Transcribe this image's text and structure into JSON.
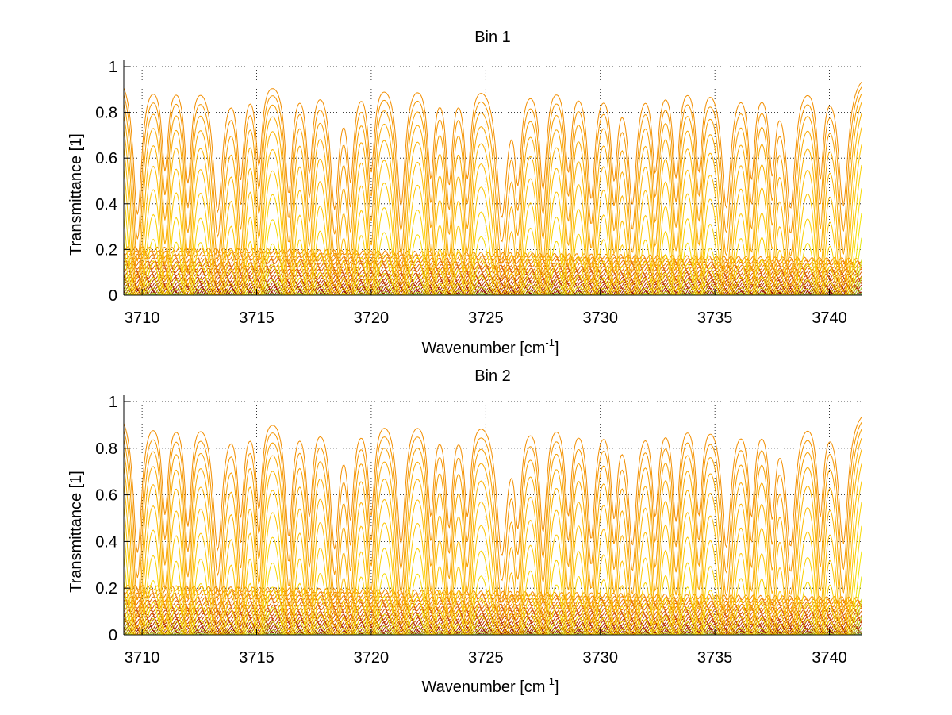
{
  "figure": {
    "background": "#ffffff",
    "colormap": [
      "#800000",
      "#a01e00",
      "#c23a00",
      "#d95a00",
      "#ec7c00",
      "#f59a00",
      "#ffc000",
      "#f3e600",
      "#a6e04a",
      "#33c7c7",
      "#1c7ad9"
    ]
  },
  "chart_data": [
    {
      "type": "line",
      "title": "Bin 1",
      "xlabel": "Wavenumber [cm",
      "xlabel_superscript": "-1",
      "xlabel_suffix": "]",
      "ylabel": "Transmittance [1]",
      "xlim": [
        3709.2,
        3741.4
      ],
      "ylim": [
        0,
        1
      ],
      "xticks": [
        3710,
        3715,
        3720,
        3725,
        3730,
        3735,
        3740
      ],
      "xtick_labels": [
        "3710",
        "3715",
        "3720",
        "3725",
        "3730",
        "3735",
        "3740"
      ],
      "yticks": [
        0,
        0.2,
        0.4,
        0.6,
        0.8,
        1
      ],
      "ytick_labels": [
        "0",
        "0.2",
        "0.4",
        "0.6",
        "0.8",
        "1"
      ],
      "grid": true,
      "grid_style": "dotted",
      "series_description": "Family of transmittance spectra from opaque (dark red, near 0) to transparent (blue, near 1)",
      "num_series": 40,
      "absorption_lines": [
        {
          "x": 3709.8,
          "depth": 1.0,
          "width": 0.18
        },
        {
          "x": 3711.0,
          "depth": 0.55,
          "width": 0.15
        },
        {
          "x": 3712.0,
          "depth": 0.65,
          "width": 0.15
        },
        {
          "x": 3713.3,
          "depth": 0.95,
          "width": 0.2
        },
        {
          "x": 3714.3,
          "depth": 0.6,
          "width": 0.15
        },
        {
          "x": 3715.1,
          "depth": 0.5,
          "width": 0.15
        },
        {
          "x": 3716.4,
          "depth": 0.75,
          "width": 0.16
        },
        {
          "x": 3717.3,
          "depth": 0.55,
          "width": 0.15
        },
        {
          "x": 3718.4,
          "depth": 0.9,
          "width": 0.18
        },
        {
          "x": 3719.1,
          "depth": 0.6,
          "width": 0.15
        },
        {
          "x": 3720.0,
          "depth": 0.55,
          "width": 0.15
        },
        {
          "x": 3721.3,
          "depth": 0.88,
          "width": 0.18
        },
        {
          "x": 3722.6,
          "depth": 0.6,
          "width": 0.15
        },
        {
          "x": 3723.4,
          "depth": 0.65,
          "width": 0.15
        },
        {
          "x": 3724.2,
          "depth": 0.6,
          "width": 0.15
        },
        {
          "x": 3725.7,
          "depth": 1.0,
          "width": 0.22
        },
        {
          "x": 3726.4,
          "depth": 0.6,
          "width": 0.15
        },
        {
          "x": 3727.5,
          "depth": 0.7,
          "width": 0.16
        },
        {
          "x": 3728.6,
          "depth": 0.55,
          "width": 0.15
        },
        {
          "x": 3729.6,
          "depth": 0.8,
          "width": 0.17
        },
        {
          "x": 3730.6,
          "depth": 0.6,
          "width": 0.15
        },
        {
          "x": 3731.4,
          "depth": 0.85,
          "width": 0.18
        },
        {
          "x": 3732.4,
          "depth": 0.55,
          "width": 0.15
        },
        {
          "x": 3733.3,
          "depth": 0.6,
          "width": 0.15
        },
        {
          "x": 3734.3,
          "depth": 0.55,
          "width": 0.15
        },
        {
          "x": 3735.5,
          "depth": 0.9,
          "width": 0.2
        },
        {
          "x": 3736.6,
          "depth": 0.6,
          "width": 0.15
        },
        {
          "x": 3737.5,
          "depth": 0.55,
          "width": 0.15
        },
        {
          "x": 3738.3,
          "depth": 0.9,
          "width": 0.2
        },
        {
          "x": 3739.6,
          "depth": 0.6,
          "width": 0.15
        },
        {
          "x": 3740.6,
          "depth": 0.9,
          "width": 0.2
        }
      ]
    },
    {
      "type": "line",
      "title": "Bin 2",
      "xlabel": "Wavenumber [cm",
      "xlabel_superscript": "-1",
      "xlabel_suffix": "]",
      "ylabel": "Transmittance [1]",
      "xlim": [
        3709.2,
        3741.4
      ],
      "ylim": [
        0,
        1
      ],
      "xticks": [
        3710,
        3715,
        3720,
        3725,
        3730,
        3735,
        3740
      ],
      "xtick_labels": [
        "3710",
        "3715",
        "3720",
        "3725",
        "3730",
        "3735",
        "3740"
      ],
      "yticks": [
        0,
        0.2,
        0.4,
        0.6,
        0.8,
        1
      ],
      "ytick_labels": [
        "0",
        "0.2",
        "0.4",
        "0.6",
        "0.8",
        "1"
      ],
      "grid": true,
      "grid_style": "dotted",
      "series_description": "Family of transmittance spectra from opaque (dark red, near 0) to transparent (blue, near 1)",
      "num_series": 40,
      "absorption_lines": [
        {
          "x": 3709.8,
          "depth": 1.0,
          "width": 0.18
        },
        {
          "x": 3711.0,
          "depth": 0.6,
          "width": 0.15
        },
        {
          "x": 3712.0,
          "depth": 0.7,
          "width": 0.15
        },
        {
          "x": 3713.3,
          "depth": 0.95,
          "width": 0.2
        },
        {
          "x": 3714.3,
          "depth": 0.6,
          "width": 0.15
        },
        {
          "x": 3715.1,
          "depth": 0.55,
          "width": 0.15
        },
        {
          "x": 3716.4,
          "depth": 0.8,
          "width": 0.16
        },
        {
          "x": 3717.3,
          "depth": 0.6,
          "width": 0.15
        },
        {
          "x": 3718.4,
          "depth": 0.92,
          "width": 0.18
        },
        {
          "x": 3719.1,
          "depth": 0.6,
          "width": 0.15
        },
        {
          "x": 3720.0,
          "depth": 0.6,
          "width": 0.15
        },
        {
          "x": 3721.3,
          "depth": 0.88,
          "width": 0.18
        },
        {
          "x": 3722.6,
          "depth": 0.6,
          "width": 0.15
        },
        {
          "x": 3723.4,
          "depth": 0.7,
          "width": 0.15
        },
        {
          "x": 3724.2,
          "depth": 0.6,
          "width": 0.15
        },
        {
          "x": 3725.7,
          "depth": 1.0,
          "width": 0.22
        },
        {
          "x": 3726.4,
          "depth": 0.65,
          "width": 0.15
        },
        {
          "x": 3727.5,
          "depth": 0.75,
          "width": 0.16
        },
        {
          "x": 3728.6,
          "depth": 0.6,
          "width": 0.15
        },
        {
          "x": 3729.6,
          "depth": 0.82,
          "width": 0.17
        },
        {
          "x": 3730.6,
          "depth": 0.6,
          "width": 0.15
        },
        {
          "x": 3731.4,
          "depth": 0.88,
          "width": 0.18
        },
        {
          "x": 3732.4,
          "depth": 0.6,
          "width": 0.15
        },
        {
          "x": 3733.3,
          "depth": 0.65,
          "width": 0.15
        },
        {
          "x": 3734.3,
          "depth": 0.6,
          "width": 0.15
        },
        {
          "x": 3735.5,
          "depth": 0.92,
          "width": 0.2
        },
        {
          "x": 3736.6,
          "depth": 0.6,
          "width": 0.15
        },
        {
          "x": 3737.5,
          "depth": 0.6,
          "width": 0.15
        },
        {
          "x": 3738.3,
          "depth": 0.9,
          "width": 0.2
        },
        {
          "x": 3739.6,
          "depth": 0.6,
          "width": 0.15
        },
        {
          "x": 3740.6,
          "depth": 0.9,
          "width": 0.2
        }
      ]
    }
  ]
}
